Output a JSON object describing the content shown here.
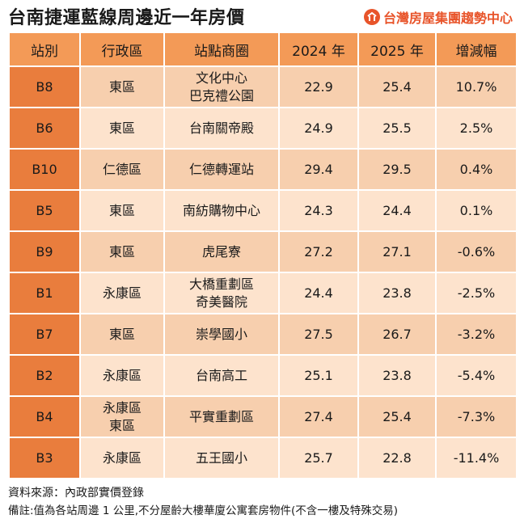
{
  "header": {
    "title": "台南捷運藍線周邊近一年房價",
    "brand": "台灣房屋集團趨勢中心",
    "brand_color": "#e8542a"
  },
  "table": {
    "columns": [
      "站別",
      "行政區",
      "站點商圈",
      "2024 年",
      "2025 年",
      "增減幅"
    ],
    "rows": [
      {
        "station": "B8",
        "district": [
          "東區"
        ],
        "area": [
          "文化中心",
          "巴克禮公園"
        ],
        "y2024": "22.9",
        "y2025": "25.4",
        "change": "10.7%"
      },
      {
        "station": "B6",
        "district": [
          "東區"
        ],
        "area": [
          "台南關帝殿"
        ],
        "y2024": "24.9",
        "y2025": "25.5",
        "change": "2.5%"
      },
      {
        "station": "B10",
        "district": [
          "仁德區"
        ],
        "area": [
          "仁德轉運站"
        ],
        "y2024": "29.4",
        "y2025": "29.5",
        "change": "0.4%"
      },
      {
        "station": "B5",
        "district": [
          "東區"
        ],
        "area": [
          "南紡購物中心"
        ],
        "y2024": "24.3",
        "y2025": "24.4",
        "change": "0.1%"
      },
      {
        "station": "B9",
        "district": [
          "東區"
        ],
        "area": [
          "虎尾寮"
        ],
        "y2024": "27.2",
        "y2025": "27.1",
        "change": "-0.6%"
      },
      {
        "station": "B1",
        "district": [
          "永康區"
        ],
        "area": [
          "大橋重劃區",
          "奇美醫院"
        ],
        "y2024": "24.4",
        "y2025": "23.8",
        "change": "-2.5%"
      },
      {
        "station": "B7",
        "district": [
          "東區"
        ],
        "area": [
          "崇學國小"
        ],
        "y2024": "27.5",
        "y2025": "26.7",
        "change": "-3.2%"
      },
      {
        "station": "B2",
        "district": [
          "永康區"
        ],
        "area": [
          "台南高工"
        ],
        "y2024": "25.1",
        "y2025": "23.8",
        "change": "-5.4%"
      },
      {
        "station": "B4",
        "district": [
          "永康區",
          "東區"
        ],
        "area": [
          "平實重劃區"
        ],
        "y2024": "27.4",
        "y2025": "25.4",
        "change": "-7.3%"
      },
      {
        "station": "B3",
        "district": [
          "永康區"
        ],
        "area": [
          "五王國小"
        ],
        "y2024": "25.7",
        "y2025": "22.8",
        "change": "-11.4%"
      }
    ]
  },
  "footer": {
    "source": "資料來源：內政部實價登錄",
    "note": "備註:值為各站周邊 1 公里,不分屋齡大樓華廈公寓套房物件(不含一樓及特殊交易)"
  },
  "colors": {
    "header_bg": "#f39a57",
    "code_bg": "#e97d3d",
    "row_light": "#fde3cd",
    "row_dark": "#f7cfae"
  }
}
